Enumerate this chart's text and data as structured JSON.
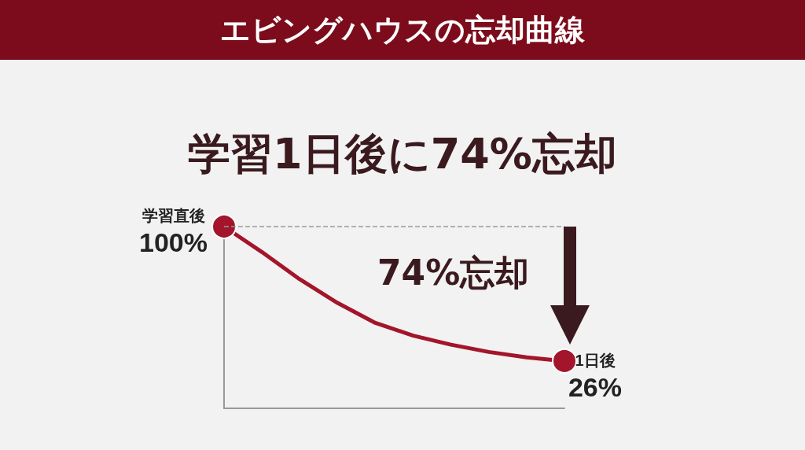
{
  "chart_data": {
    "type": "line",
    "title": "エビングハウスの忘却曲線",
    "subtitle": "学習1日後に74%忘却",
    "categories": [
      null,
      null,
      null,
      null,
      null,
      null,
      null,
      null,
      null,
      null
    ],
    "values": [
      100,
      86,
      71,
      58,
      47,
      40,
      35,
      31,
      28,
      26
    ],
    "value_labels": [
      "100%",
      null,
      null,
      null,
      null,
      null,
      null,
      null,
      null,
      "26%"
    ],
    "color": "#a3152a",
    "ylim": [
      0,
      100
    ],
    "grid": false,
    "line_style": "solid",
    "ref_lines": [
      {
        "axis": "y",
        "value": 100,
        "color": "#9a9a9a",
        "line_style": "dashed"
      }
    ],
    "annotations": [
      "74%忘却",
      "学習直後",
      "1日後"
    ]
  }
}
